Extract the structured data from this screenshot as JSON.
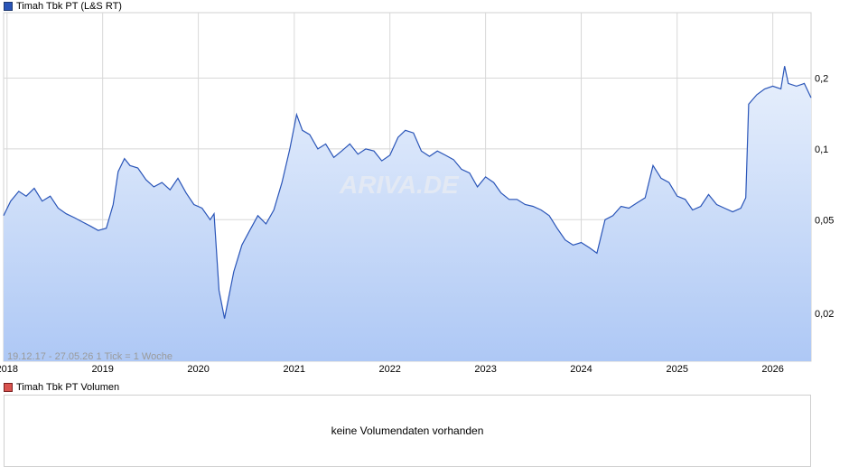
{
  "price_legend": {
    "label": "Timah Tbk PT (L&S RT)",
    "color": "#2a55b8"
  },
  "volume_legend": {
    "label": "Timah Tbk PT Volumen",
    "color": "#d9534f"
  },
  "range_text": "19.12.17 - 27.05.26   1 Tick = 1 Woche",
  "watermark": "ARIVA.DE",
  "volume_message": "keine Volumendaten vorhanden",
  "chart_data": {
    "type": "line",
    "y_scale": "log",
    "ylim": [
      0.0125,
      0.38
    ],
    "xlim": [
      "2017-12-19",
      "2026-05-27"
    ],
    "x_ticks": [
      "2018",
      "2019",
      "2020",
      "2021",
      "2022",
      "2023",
      "2024",
      "2025",
      "2026"
    ],
    "y_ticks": [
      {
        "value": 0.2,
        "label": "0,2"
      },
      {
        "value": 0.1,
        "label": "0,1"
      },
      {
        "value": 0.05,
        "label": "0,05"
      },
      {
        "value": 0.02,
        "label": "0,02"
      }
    ],
    "grid": true,
    "line_color": "#2a55b8",
    "fill_top": "#e8f0fc",
    "fill_bottom": "#aec8f5",
    "series": [
      {
        "x": [
          "2017-12-19",
          "2018-01-15",
          "2018-02-15",
          "2018-03-15",
          "2018-04-15",
          "2018-05-15",
          "2018-06-15",
          "2018-07-15",
          "2018-08-15",
          "2018-09-15",
          "2018-10-15",
          "2018-11-15",
          "2018-12-15",
          "2019-01-15",
          "2019-02-10",
          "2019-03-01",
          "2019-03-25",
          "2019-04-15",
          "2019-05-15",
          "2019-06-15",
          "2019-07-15",
          "2019-08-15",
          "2019-09-15",
          "2019-10-15",
          "2019-11-15",
          "2019-12-15",
          "2020-01-15",
          "2020-02-15",
          "2020-03-01",
          "2020-03-20",
          "2020-04-10",
          "2020-05-15",
          "2020-06-15",
          "2020-07-15",
          "2020-08-15",
          "2020-09-15",
          "2020-10-15",
          "2020-11-15",
          "2020-12-15",
          "2021-01-10",
          "2021-02-01",
          "2021-03-01",
          "2021-04-01",
          "2021-05-01",
          "2021-06-01",
          "2021-07-01",
          "2021-08-01",
          "2021-09-01",
          "2021-10-01",
          "2021-11-01",
          "2021-12-01",
          "2022-01-01",
          "2022-02-01",
          "2022-03-01",
          "2022-04-01",
          "2022-05-01",
          "2022-06-01",
          "2022-07-01",
          "2022-08-01",
          "2022-09-01",
          "2022-10-01",
          "2022-11-01",
          "2022-12-01",
          "2023-01-01",
          "2023-02-01",
          "2023-03-01",
          "2023-04-01",
          "2023-05-01",
          "2023-06-01",
          "2023-07-01",
          "2023-08-01",
          "2023-09-01",
          "2023-10-01",
          "2023-11-01",
          "2023-12-01",
          "2024-01-01",
          "2024-02-01",
          "2024-03-01",
          "2024-04-01",
          "2024-05-01",
          "2024-06-01",
          "2024-07-01",
          "2024-08-01",
          "2024-09-01",
          "2024-10-01",
          "2024-11-01",
          "2024-12-01",
          "2025-01-01",
          "2025-02-01",
          "2025-03-01",
          "2025-04-01",
          "2025-05-01",
          "2025-06-01",
          "2025-07-01",
          "2025-08-01",
          "2025-09-01",
          "2025-09-20",
          "2025-10-01",
          "2025-11-01",
          "2025-12-01",
          "2026-01-01",
          "2026-02-01",
          "2026-02-15",
          "2026-03-01",
          "2026-04-01",
          "2026-05-01",
          "2026-05-27"
        ],
        "y": [
          0.052,
          0.06,
          0.066,
          0.063,
          0.068,
          0.06,
          0.063,
          0.056,
          0.053,
          0.051,
          0.049,
          0.047,
          0.045,
          0.046,
          0.058,
          0.08,
          0.091,
          0.085,
          0.083,
          0.074,
          0.069,
          0.072,
          0.067,
          0.075,
          0.065,
          0.058,
          0.056,
          0.05,
          0.053,
          0.025,
          0.019,
          0.03,
          0.039,
          0.045,
          0.052,
          0.048,
          0.055,
          0.072,
          0.1,
          0.14,
          0.12,
          0.115,
          0.1,
          0.105,
          0.092,
          0.098,
          0.105,
          0.095,
          0.1,
          0.098,
          0.089,
          0.094,
          0.112,
          0.12,
          0.117,
          0.098,
          0.093,
          0.098,
          0.094,
          0.09,
          0.082,
          0.079,
          0.069,
          0.076,
          0.072,
          0.065,
          0.061,
          0.061,
          0.058,
          0.057,
          0.055,
          0.052,
          0.046,
          0.041,
          0.039,
          0.04,
          0.038,
          0.036,
          0.05,
          0.052,
          0.057,
          0.056,
          0.059,
          0.062,
          0.085,
          0.075,
          0.072,
          0.063,
          0.061,
          0.055,
          0.057,
          0.064,
          0.058,
          0.056,
          0.054,
          0.056,
          0.062,
          0.155,
          0.17,
          0.18,
          0.185,
          0.18,
          0.225,
          0.19,
          0.185,
          0.19,
          0.165
        ]
      }
    ]
  }
}
